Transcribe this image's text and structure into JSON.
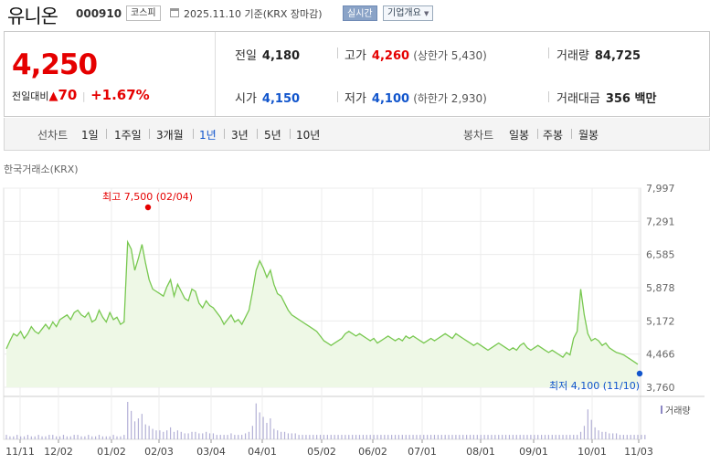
{
  "header": {
    "name": "유니온",
    "code": "000910",
    "market": "코스피",
    "date_text": "2025.11.10 기준(KRX 장마감)",
    "realtime": "실시간",
    "company_info": "기업개요",
    "company_info_caret": "▼"
  },
  "quote": {
    "price": "4,250",
    "change_label": "전일대비",
    "change_arrow": "▲",
    "change": "70",
    "change_pct": "+1.67%",
    "prev_label": "전일",
    "prev": "4,180",
    "open_label": "시가",
    "open": "4,150",
    "high_label": "고가",
    "high": "4,260",
    "upper_limit": "(상한가 5,430)",
    "low_label": "저가",
    "low": "4,100",
    "lower_limit": "(하한가 2,930)",
    "volume_label": "거래량",
    "volume": "84,725",
    "amount_label": "거래대금",
    "amount": "356 백만"
  },
  "periods": {
    "line_label": "선차트",
    "line": [
      "1일",
      "1주일",
      "3개월",
      "1년",
      "3년",
      "5년",
      "10년"
    ],
    "active": "1년",
    "candle_label": "봉차트",
    "candle": [
      "일봉",
      "주봉",
      "월봉"
    ]
  },
  "source": "한국거래소(KRX)",
  "colors": {
    "up": "#e50000",
    "down": "#1155cc",
    "line": "#78c850",
    "fill": "#eef8e6",
    "volume": "#b3b0d6"
  },
  "chart_data": {
    "type": "area",
    "x_tick_labels": [
      "11/11",
      "12/02",
      "01/02",
      "02/03",
      "03/04",
      "04/01",
      "05/02",
      "06/02",
      "07/01",
      "08/01",
      "09/01",
      "10/01",
      "11/03"
    ],
    "y_tick_labels": [
      "7,997",
      "7,291",
      "6,585",
      "5,878",
      "5,172",
      "4,466",
      "3,760"
    ],
    "ylim": [
      3760,
      7997
    ],
    "high_annotation": "최고 7,500 (02/04)",
    "high": {
      "date": "02/04",
      "value": 7500
    },
    "low_annotation": "최저 4,100 (11/10)",
    "low": {
      "date": "11/10",
      "value": 4100
    },
    "volume_legend": "거래량",
    "series": [
      {
        "values": [
          4580,
          4750,
          4900,
          4850,
          4950,
          4800,
          4900,
          5050,
          4950,
          4900,
          5000,
          5100,
          5000,
          5150,
          5050,
          5200,
          5250,
          5300,
          5200,
          5350,
          5400,
          5300,
          5250,
          5350,
          5150,
          5200,
          5400,
          5250,
          5150,
          5350,
          5200,
          5250,
          5100,
          5150,
          6850,
          6700,
          6250,
          6500,
          6800,
          6400,
          6050,
          5850,
          5800,
          5750,
          5700,
          5900,
          6050,
          5700,
          5950,
          5800,
          5650,
          5600,
          5850,
          5800,
          5550,
          5450,
          5600,
          5500,
          5450,
          5350,
          5250,
          5100,
          5200,
          5300,
          5150,
          5200,
          5100,
          5250,
          5400,
          5800,
          6250,
          6450,
          6300,
          6100,
          6250,
          5950,
          5750,
          5700,
          5550,
          5400,
          5300,
          5250,
          5200,
          5150,
          5100,
          5050,
          5000,
          4950,
          4850,
          4750,
          4700,
          4650,
          4700,
          4750,
          4800,
          4900,
          4950,
          4900,
          4850,
          4900,
          4850,
          4800,
          4750,
          4800,
          4700,
          4750,
          4800,
          4850,
          4800,
          4750,
          4800,
          4750,
          4850,
          4800,
          4850,
          4800,
          4750,
          4700,
          4750,
          4800,
          4750,
          4800,
          4850,
          4900,
          4850,
          4800,
          4900,
          4850,
          4800,
          4750,
          4700,
          4650,
          4700,
          4650,
          4600,
          4550,
          4600,
          4650,
          4700,
          4650,
          4600,
          4550,
          4600,
          4550,
          4650,
          4700,
          4600,
          4550,
          4600,
          4650,
          4600,
          4550,
          4500,
          4550,
          4500,
          4450,
          4400,
          4500,
          4450,
          4800,
          4950,
          5850,
          5300,
          4900,
          4750,
          4800,
          4750,
          4650,
          4700,
          4600,
          4550,
          4500,
          4480,
          4450,
          4400,
          4350,
          4300,
          4250
        ]
      }
    ],
    "volume": [
      3,
      2,
      2,
      3,
      2,
      2,
      3,
      2,
      2,
      3,
      2,
      2,
      3,
      3,
      2,
      2,
      3,
      2,
      2,
      3,
      3,
      2,
      2,
      3,
      2,
      2,
      3,
      2,
      2,
      2,
      3,
      2,
      2,
      3,
      25,
      19,
      12,
      14,
      17,
      10,
      9,
      7,
      6,
      6,
      5,
      6,
      8,
      5,
      6,
      5,
      4,
      4,
      5,
      5,
      4,
      4,
      5,
      4,
      4,
      3,
      3,
      3,
      3,
      4,
      3,
      3,
      3,
      4,
      5,
      9,
      24,
      18,
      15,
      11,
      14,
      7,
      6,
      5,
      5,
      4,
      4,
      4,
      3,
      3,
      3,
      3,
      3,
      3,
      3,
      3,
      3,
      3,
      3,
      3,
      3,
      3,
      3,
      3,
      3,
      3,
      3,
      3,
      3,
      3,
      3,
      3,
      3,
      3,
      3,
      3,
      3,
      3,
      3,
      3,
      3,
      3,
      3,
      3,
      3,
      3,
      3,
      3,
      3,
      3,
      3,
      3,
      3,
      3,
      3,
      3,
      3,
      3,
      3,
      3,
      3,
      3,
      3,
      3,
      3,
      3,
      3,
      3,
      3,
      3,
      3,
      3,
      3,
      3,
      3,
      3,
      3,
      3,
      3,
      3,
      3,
      3,
      3,
      3,
      3,
      3,
      3,
      5,
      9,
      20,
      13,
      8,
      6,
      5,
      5,
      4,
      4,
      4,
      3,
      3,
      3,
      3,
      3,
      3,
      3,
      3
    ],
    "grid": true
  }
}
